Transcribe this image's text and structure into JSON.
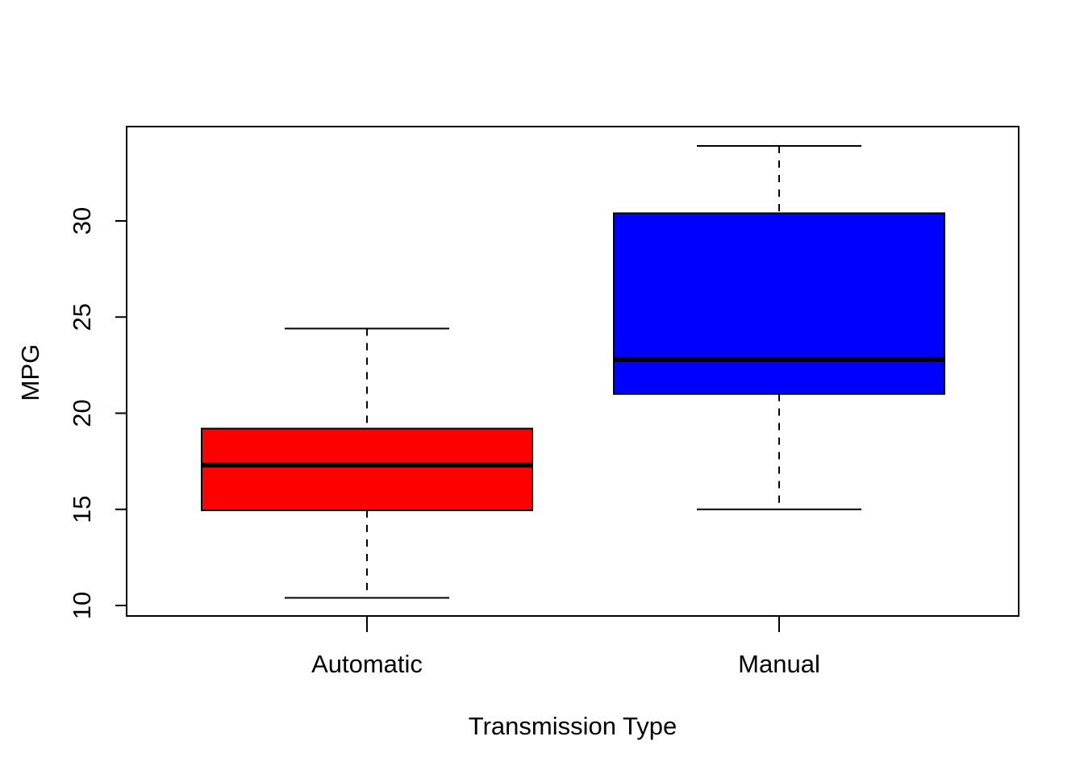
{
  "chart_data": {
    "type": "boxplot",
    "title": "",
    "xlabel": "Transmission Type",
    "ylabel": "MPG",
    "ylim": [
      9.5,
      35
    ],
    "yticks": [
      10,
      15,
      20,
      25,
      30
    ],
    "grid": false,
    "categories": [
      "Automatic",
      "Manual"
    ],
    "boxes": [
      {
        "category": "Automatic",
        "min": 10.4,
        "q1": 14.95,
        "median": 17.3,
        "q3": 19.2,
        "max": 24.4,
        "color": "#ff0000"
      },
      {
        "category": "Manual",
        "min": 15.0,
        "q1": 21.0,
        "median": 22.8,
        "q3": 30.4,
        "max": 33.9,
        "color": "#0000ff"
      }
    ]
  }
}
